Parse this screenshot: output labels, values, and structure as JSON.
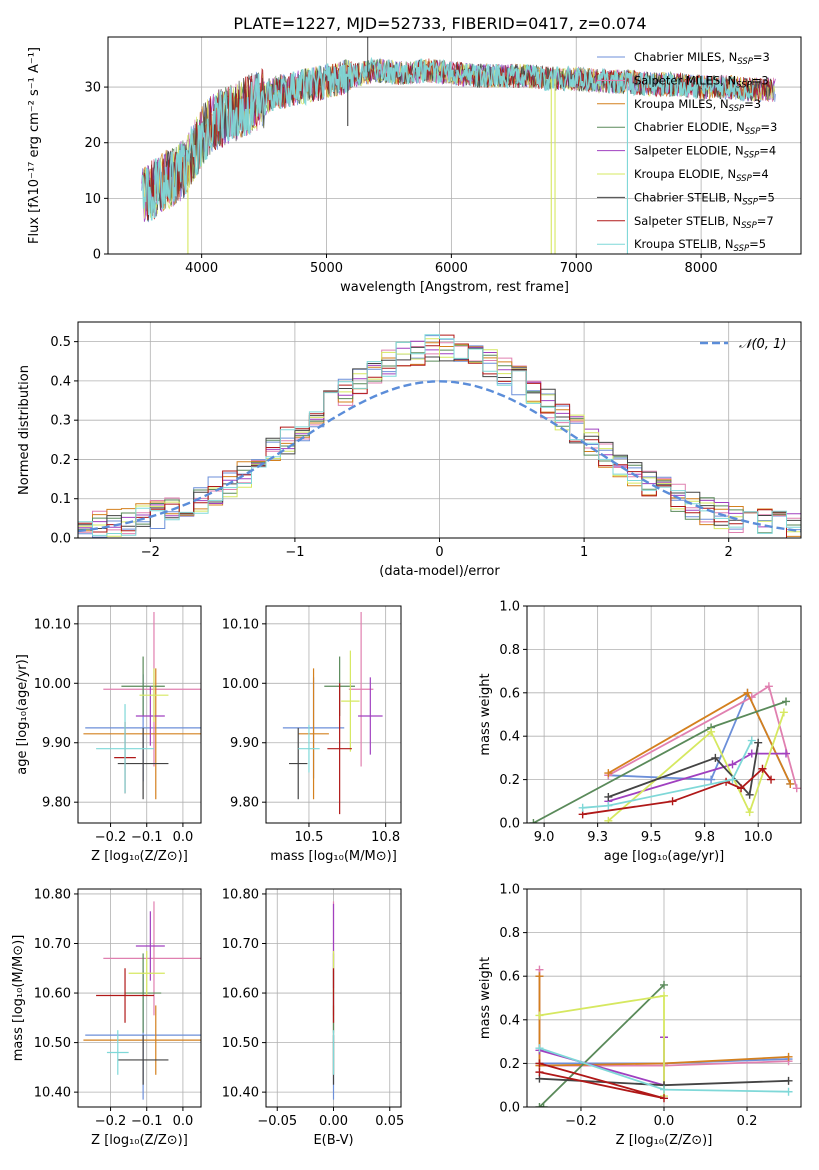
{
  "figure": {
    "title": "PLATE=1227, MJD=52733, FIBERID=0417, z=0.074"
  },
  "series_styles": [
    {
      "name": "Chabrier MILES",
      "color": "#6c8fd9"
    },
    {
      "name": "Salpeter MILES",
      "color": "#e080b0"
    },
    {
      "name": "Kroupa MILES",
      "color": "#d4801e"
    },
    {
      "name": "Chabrier ELODIE",
      "color": "#5a8a5a"
    },
    {
      "name": "Salpeter ELODIE",
      "color": "#a040c0"
    },
    {
      "name": "Kroupa ELODIE",
      "color": "#d6e860"
    },
    {
      "name": "Chabrier STELIB",
      "color": "#444444"
    },
    {
      "name": "Salpeter STELIB",
      "color": "#b01818"
    },
    {
      "name": "Kroupa STELIB",
      "color": "#7fd8d8"
    }
  ],
  "chart_data": [
    {
      "id": "spectrum",
      "type": "line",
      "title": "PLATE=1227, MJD=52733, FIBERID=0417, z=0.074",
      "xlabel": "wavelength [Angstrom, rest frame]",
      "ylabel": "Flux [fλ10⁻¹⁷ erg cm⁻² s⁻¹ A⁻¹]",
      "xlim": [
        3250,
        8800
      ],
      "ylim": [
        0,
        39
      ],
      "xticks": [
        4000,
        5000,
        6000,
        7000,
        8000
      ],
      "yticks": [
        0,
        10,
        20,
        30
      ],
      "legend_position": "top-right",
      "legend": [
        {
          "base": "Chabrier MILES, N",
          "sub": "SSP",
          "tail": "=3"
        },
        {
          "base": "Salpeter MILES, N",
          "sub": "SSP",
          "tail": "=3"
        },
        {
          "base": "Kroupa MILES, N",
          "sub": "SSP",
          "tail": "=3"
        },
        {
          "base": "Chabrier ELODIE, N",
          "sub": "SSP",
          "tail": "=3"
        },
        {
          "base": "Salpeter ELODIE, N",
          "sub": "SSP",
          "tail": "=4"
        },
        {
          "base": "Kroupa ELODIE, N",
          "sub": "SSP",
          "tail": "=4"
        },
        {
          "base": "Chabrier STELIB, N",
          "sub": "SSP",
          "tail": "=5"
        },
        {
          "base": "Salpeter STELIB, N",
          "sub": "SSP",
          "tail": "=7"
        },
        {
          "base": "Kroupa STELIB, N",
          "sub": "SSP",
          "tail": "=5"
        }
      ],
      "continuum": {
        "x": [
          3520,
          3700,
          3850,
          3950,
          4050,
          4200,
          4400,
          4600,
          4800,
          5000,
          5200,
          5400,
          5600,
          5800,
          6000,
          6200,
          6400,
          6600,
          6800,
          7000,
          7200,
          7400,
          7600,
          7800,
          8000,
          8200,
          8400,
          8600
        ],
        "y": [
          10,
          13,
          15,
          19,
          23,
          25,
          27,
          29,
          30,
          31,
          32,
          33,
          32.5,
          33,
          32.5,
          32,
          32,
          32,
          31.5,
          31.5,
          31,
          31,
          30.5,
          30.5,
          30,
          30,
          29.5,
          29.5
        ]
      },
      "spikes_down": [
        {
          "x": 3890,
          "y": 0
        },
        {
          "x": 5170,
          "y": 23
        },
        {
          "x": 6800,
          "y": 0
        },
        {
          "x": 6830,
          "y": 0
        },
        {
          "x": 7410,
          "y": 0
        }
      ],
      "spikes_up": [
        {
          "x": 5330,
          "y": 39
        }
      ]
    },
    {
      "id": "residuals",
      "type": "histogram",
      "xlabel": "(data-model)/error",
      "ylabel": "Normed distribution",
      "xlim": [
        -2.5,
        2.5
      ],
      "ylim": [
        0,
        0.55
      ],
      "xticks": [
        -2,
        -1,
        0,
        1,
        2
      ],
      "yticks": [
        0,
        0.1,
        0.2,
        0.3,
        0.4,
        0.5
      ],
      "reference_label": "𝒩(0, 1)",
      "reference_mu": 0,
      "reference_sigma": 1,
      "bin_width": 0.1,
      "range": [
        -2.5,
        2.5
      ]
    },
    {
      "id": "age-vs-Z",
      "type": "errorbar",
      "xlabel": "Z [log₁₀(Z/Z⊙)]",
      "ylabel": "age  [log₁₀(age/yr)]",
      "xlim": [
        -0.29,
        0.05
      ],
      "ylim": [
        9.765,
        10.13
      ],
      "xticks": [
        -0.2,
        -0.1,
        0.0
      ],
      "yticks": [
        9.8,
        9.9,
        10.0,
        10.1
      ],
      "points": [
        {
          "x": -0.11,
          "xerr": 0.16,
          "y": 9.925,
          "yerr": 0.09
        },
        {
          "x": -0.08,
          "xerr": 0.14,
          "y": 9.99,
          "yerr": 0.13
        },
        {
          "x": -0.075,
          "xerr": 0.2,
          "y": 9.915,
          "yerr": 0.11
        },
        {
          "x": -0.11,
          "xerr": 0.06,
          "y": 9.995,
          "yerr": 0.05
        },
        {
          "x": -0.09,
          "xerr": 0.04,
          "y": 9.945,
          "yerr": 0.05
        },
        {
          "x": -0.08,
          "xerr": 0.04,
          "y": 9.98,
          "yerr": 0.045
        },
        {
          "x": -0.11,
          "xerr": 0.07,
          "y": 9.865,
          "yerr": 0.06
        },
        {
          "x": -0.16,
          "xerr": 0.03,
          "y": 9.875,
          "yerr": 0.06
        },
        {
          "x": -0.16,
          "xerr": 0.08,
          "y": 9.89,
          "yerr": 0.075
        }
      ]
    },
    {
      "id": "age-vs-mass",
      "type": "errorbar",
      "xlabel": "mass [log₁₀(M/M⊙)]",
      "ylabel": "",
      "xlim": [
        10.36,
        10.8
      ],
      "ylim": [
        9.765,
        10.13
      ],
      "xticks": [
        10.5,
        10.75
      ],
      "yticks": [
        9.8,
        9.9,
        10.0,
        10.1
      ],
      "points": [
        {
          "x": 10.515,
          "xerr": 0.1,
          "y": 9.925,
          "yerr": 0.085
        },
        {
          "x": 10.67,
          "xerr": 0.04,
          "y": 9.99,
          "yerr": 0.13
        },
        {
          "x": 10.515,
          "xerr": 0.05,
          "y": 9.915,
          "yerr": 0.11
        },
        {
          "x": 10.6,
          "xerr": 0.05,
          "y": 9.995,
          "yerr": 0.05
        },
        {
          "x": 10.7,
          "xerr": 0.04,
          "y": 9.945,
          "yerr": 0.065
        },
        {
          "x": 10.635,
          "xerr": 0.03,
          "y": 9.97,
          "yerr": 0.085
        },
        {
          "x": 10.465,
          "xerr": 0.03,
          "y": 9.865,
          "yerr": 0.06
        },
        {
          "x": 10.6,
          "xerr": 0.04,
          "y": 9.89,
          "yerr": 0.11
        },
        {
          "x": 10.5,
          "xerr": 0.035,
          "y": 9.89,
          "yerr": 0.04
        }
      ]
    },
    {
      "id": "weight-vs-age",
      "type": "line",
      "xlabel": "age  [log₁₀(age/yr)]",
      "ylabel": "mass weight",
      "xlim": [
        8.92,
        10.2
      ],
      "ylim": [
        0,
        1
      ],
      "xticks": [
        9.0,
        9.25,
        9.5,
        9.75,
        10.0
      ],
      "yticks": [
        0,
        0.2,
        0.4,
        0.6,
        0.8,
        1.0
      ],
      "series": [
        {
          "name": "Chabrier MILES",
          "x": [
            9.3,
            9.78,
            9.95,
            10.15
          ],
          "y": [
            0.22,
            0.2,
            0.6,
            0.18
          ]
        },
        {
          "name": "Salpeter MILES",
          "x": [
            9.3,
            9.97,
            10.05,
            10.18
          ],
          "y": [
            0.22,
            0.58,
            0.63,
            0.16
          ]
        },
        {
          "name": "Kroupa MILES",
          "x": [
            9.3,
            9.95,
            10.15
          ],
          "y": [
            0.23,
            0.6,
            0.18
          ]
        },
        {
          "name": "Chabrier ELODIE",
          "x": [
            8.95,
            9.78,
            10.13
          ],
          "y": [
            0.0,
            0.44,
            0.56
          ]
        },
        {
          "name": "Salpeter ELODIE",
          "x": [
            9.3,
            9.88,
            9.97,
            10.13
          ],
          "y": [
            0.1,
            0.27,
            0.32,
            0.32
          ]
        },
        {
          "name": "Kroupa ELODIE",
          "x": [
            9.3,
            9.78,
            9.96,
            10.12
          ],
          "y": [
            0.01,
            0.42,
            0.05,
            0.51
          ]
        },
        {
          "name": "Chabrier STELIB",
          "x": [
            9.3,
            9.8,
            9.96,
            10.0
          ],
          "y": [
            0.12,
            0.3,
            0.13,
            0.37
          ]
        },
        {
          "name": "Salpeter STELIB",
          "x": [
            9.18,
            9.6,
            9.85,
            9.92,
            10.02,
            10.06
          ],
          "y": [
            0.04,
            0.1,
            0.19,
            0.16,
            0.25,
            0.2
          ]
        },
        {
          "name": "Kroupa STELIB",
          "x": [
            9.18,
            9.3,
            9.88,
            9.97
          ],
          "y": [
            0.07,
            0.08,
            0.2,
            0.38
          ]
        }
      ]
    },
    {
      "id": "mass-vs-Z",
      "type": "errorbar",
      "xlabel": "Z [log₁₀(Z/Z⊙)]",
      "ylabel": "mass [log₁₀(M/M⊙)]",
      "xlim": [
        -0.29,
        0.05
      ],
      "ylim": [
        10.37,
        10.81
      ],
      "xticks": [
        -0.2,
        -0.1,
        0.0
      ],
      "yticks": [
        10.4,
        10.5,
        10.6,
        10.7,
        10.8
      ],
      "points": [
        {
          "x": -0.11,
          "xerr": 0.16,
          "y": 10.515,
          "yerr": 0.13
        },
        {
          "x": -0.08,
          "xerr": 0.14,
          "y": 10.67,
          "yerr": 0.115
        },
        {
          "x": -0.075,
          "xerr": 0.2,
          "y": 10.505,
          "yerr": 0.07
        },
        {
          "x": -0.11,
          "xerr": 0.05,
          "y": 10.6,
          "yerr": 0.08
        },
        {
          "x": -0.09,
          "xerr": 0.04,
          "y": 10.695,
          "yerr": 0.07
        },
        {
          "x": -0.1,
          "xerr": 0.05,
          "y": 10.64,
          "yerr": 0.045
        },
        {
          "x": -0.11,
          "xerr": 0.07,
          "y": 10.465,
          "yerr": 0.05
        },
        {
          "x": -0.16,
          "xerr": 0.08,
          "y": 10.595,
          "yerr": 0.055
        },
        {
          "x": -0.18,
          "xerr": 0.03,
          "y": 10.48,
          "yerr": 0.045
        }
      ]
    },
    {
      "id": "mass-vs-EBV",
      "type": "errorbar",
      "xlabel": "E(B-V)",
      "ylabel": "",
      "xlim": [
        -0.06,
        0.06
      ],
      "ylim": [
        10.37,
        10.81
      ],
      "xticks": [
        -0.05,
        0.0,
        0.05
      ],
      "yticks": [
        10.4,
        10.5,
        10.6,
        10.7,
        10.8
      ],
      "points": [
        {
          "x": 0,
          "xerr": 0,
          "y": 10.515,
          "yerr": 0.13
        },
        {
          "x": 0,
          "xerr": 0,
          "y": 10.67,
          "yerr": 0.115
        },
        {
          "x": 0,
          "xerr": 0,
          "y": 10.505,
          "yerr": 0.07
        },
        {
          "x": 0,
          "xerr": 0,
          "y": 10.6,
          "yerr": 0.08
        },
        {
          "x": 0,
          "xerr": 0,
          "y": 10.695,
          "yerr": 0.085
        },
        {
          "x": 0,
          "xerr": 0,
          "y": 10.64,
          "yerr": 0.045
        },
        {
          "x": 0,
          "xerr": 0,
          "y": 10.465,
          "yerr": 0.05
        },
        {
          "x": 0,
          "xerr": 0,
          "y": 10.595,
          "yerr": 0.055
        },
        {
          "x": 0,
          "xerr": 0,
          "y": 10.48,
          "yerr": 0.045
        }
      ]
    },
    {
      "id": "weight-vs-Z",
      "type": "line",
      "xlabel": "Z [log₁₀(Z/Z⊙)]",
      "ylabel": "mass weight",
      "xlim": [
        -0.33,
        0.33
      ],
      "ylim": [
        0,
        1
      ],
      "xticks": [
        -0.2,
        0.0,
        0.2
      ],
      "yticks": [
        0,
        0.2,
        0.4,
        0.6,
        0.8,
        1.0
      ],
      "series": [
        {
          "name": "Chabrier MILES",
          "x": [
            -0.3,
            -0.3,
            0.0,
            0.3
          ],
          "y": [
            0.6,
            0.2,
            0.2,
            0.22
          ]
        },
        {
          "name": "Salpeter MILES",
          "x": [
            -0.3,
            -0.3,
            0.0,
            0.3
          ],
          "y": [
            0.63,
            0.19,
            0.19,
            0.21
          ]
        },
        {
          "name": "Kroupa MILES",
          "x": [
            -0.3,
            -0.3,
            0.0,
            0.3
          ],
          "y": [
            0.6,
            0.19,
            0.2,
            0.23
          ]
        },
        {
          "name": "Chabrier ELODIE",
          "x": [
            -0.29,
            -0.3,
            0.0
          ],
          "y": [
            0.0,
            0.0,
            0.56
          ]
        },
        {
          "name": "Salpeter ELODIE",
          "x": [
            -0.3,
            0.0,
            0.0
          ],
          "y": [
            0.26,
            0.1,
            0.32
          ]
        },
        {
          "name": "Kroupa ELODIE",
          "x": [
            -0.3,
            0.0,
            0.0
          ],
          "y": [
            0.42,
            0.51,
            0.05
          ]
        },
        {
          "name": "Chabrier STELIB",
          "x": [
            -0.3,
            0.0,
            0.3
          ],
          "y": [
            0.13,
            0.1,
            0.12
          ]
        },
        {
          "name": "Salpeter STELIB",
          "x": [
            -0.3,
            0.0,
            -0.3
          ],
          "y": [
            0.2,
            0.04,
            0.16
          ]
        },
        {
          "name": "Kroupa STELIB",
          "x": [
            -0.3,
            0.0,
            0.3
          ],
          "y": [
            0.27,
            0.08,
            0.07
          ]
        }
      ]
    }
  ]
}
